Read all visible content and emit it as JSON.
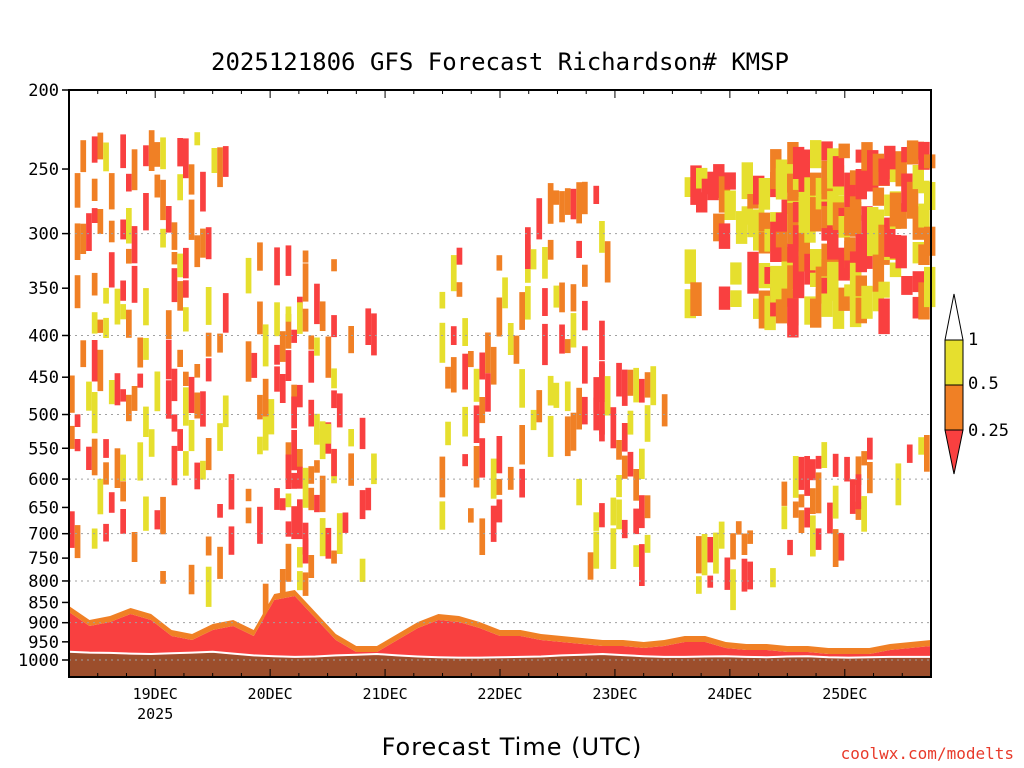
{
  "title": "2025121806 GFS Forecast Richardson# KMSP",
  "xlabel": "Forecast Time (UTC)",
  "credit": "coolwx.com/modelts",
  "colors": {
    "low": "#f94040",
    "mid": "#f08025",
    "high": "#e6df2e",
    "ground": "#9c4e2c",
    "gridline": "#a0a0a0"
  },
  "chart_data": {
    "type": "heatmap",
    "title": "2025121806 GFS Forecast Richardson# KMSP",
    "xlabel": "Forecast Time (UTC)",
    "ylabel": "",
    "y_scale": "pressure (log), reversed",
    "ylim": [
      1000,
      200
    ],
    "y_ticks": [
      200,
      250,
      300,
      350,
      400,
      450,
      500,
      550,
      600,
      650,
      700,
      750,
      800,
      850,
      900,
      950,
      1000
    ],
    "y_gridlines": [
      300,
      400,
      500,
      600,
      700,
      800,
      900,
      1000
    ],
    "x_start": "2025-12-18 06Z",
    "x_end": "2025-12-25 18Z",
    "x_ticks": [
      {
        "label": "19DEC",
        "sub": "2025",
        "time": "2025-12-19 00Z"
      },
      {
        "label": "20DEC",
        "sub": "",
        "time": "2025-12-20 00Z"
      },
      {
        "label": "21DEC",
        "sub": "",
        "time": "2025-12-21 00Z"
      },
      {
        "label": "22DEC",
        "sub": "",
        "time": "2025-12-22 00Z"
      },
      {
        "label": "23DEC",
        "sub": "",
        "time": "2025-12-23 00Z"
      },
      {
        "label": "24DEC",
        "sub": "",
        "time": "2025-12-24 00Z"
      },
      {
        "label": "25DEC",
        "sub": "",
        "time": "2025-12-25 00Z"
      }
    ],
    "legend": {
      "placement": "right",
      "bins": [
        {
          "range": "< 0.25",
          "color": "#f94040"
        },
        {
          "range": "0.25 - 0.5",
          "color": "#f08025"
        },
        {
          "range": "0.5 - 1",
          "color": "#e6df2e"
        },
        {
          "range": "> 1",
          "color": "#ffffff"
        }
      ],
      "labels": [
        "1",
        "0.5",
        "0.25"
      ]
    },
    "ground_pressure": [
      980,
      982,
      983,
      985,
      986,
      984,
      982,
      980,
      985,
      990,
      992,
      994,
      993,
      990,
      988,
      986,
      990,
      993,
      995,
      996,
      996,
      995,
      994,
      993,
      990,
      988,
      986,
      989,
      992,
      994,
      994,
      993,
      992,
      994,
      995,
      993,
      992,
      995,
      996,
      995,
      994,
      994,
      994
    ]
  }
}
